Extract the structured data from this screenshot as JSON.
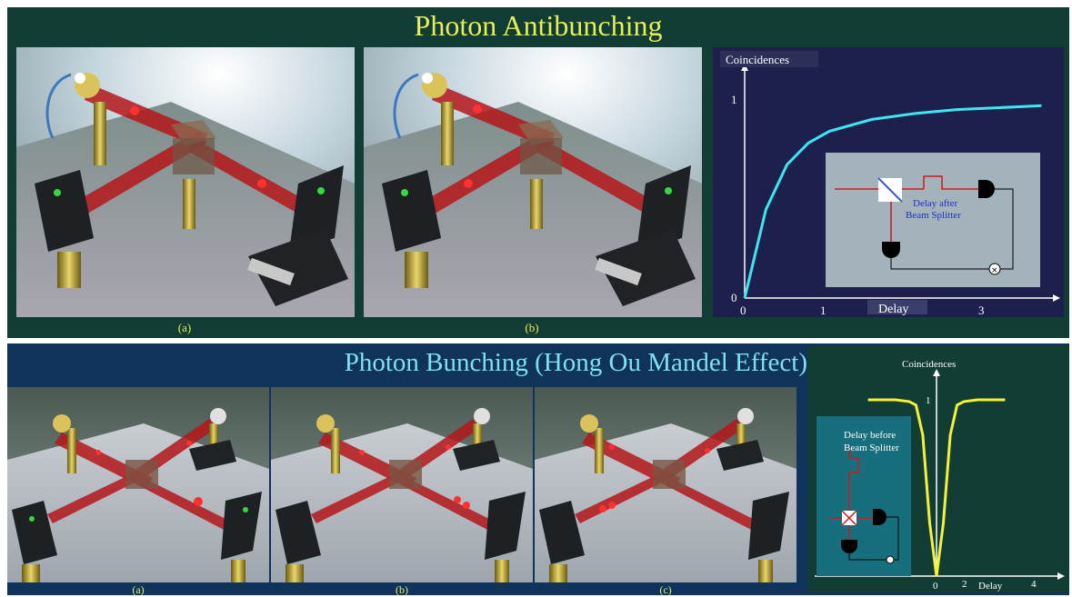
{
  "top": {
    "title": "Photon Antibunching",
    "caption_a": "(a)",
    "caption_b": "(b)",
    "graph": {
      "ylabel": "Coincidences",
      "xlabel": "Delay",
      "y_tick_1": "1",
      "y_tick_0": "0",
      "x_tick_0": "0",
      "x_tick_1": "1",
      "x_tick_3": "3",
      "inset_label": "Delay after\nBeam Splitter",
      "curve_color": "#3ee6f2"
    }
  },
  "bottom": {
    "title": "Photon Bunching (Hong Ou Mandel Effect)",
    "caption_a": "(a)",
    "caption_b": "(b)",
    "caption_c": "(c)",
    "graph": {
      "ylabel": "Coincidences",
      "xlabel": "Delay",
      "y_tick_1": "1",
      "x_tick_0": "0",
      "x_tick_2": "2",
      "x_tick_4": "4",
      "inset_label": "Delay before\nBeam Splitter",
      "curve_color": "#f2f23a"
    }
  },
  "colors": {
    "laser": "#c0181c",
    "detector_dot": "#35d83f"
  },
  "chart_data": [
    {
      "type": "line",
      "title": "",
      "ylabel": "Coincidences",
      "xlabel": "Delay",
      "x": [
        0,
        0.25,
        0.5,
        0.75,
        1,
        1.5,
        2,
        2.5,
        3,
        3.5
      ],
      "series": [
        {
          "values": [
            0,
            0.45,
            0.68,
            0.79,
            0.85,
            0.91,
            0.94,
            0.96,
            0.97,
            0.98
          ]
        }
      ],
      "ylim": [
        0,
        1.2
      ],
      "xlim": [
        0,
        3.7
      ]
    },
    {
      "type": "line",
      "title": "",
      "ylabel": "Coincidences",
      "xlabel": "Delay",
      "x": [
        -5,
        -3,
        -2,
        -1.5,
        -1,
        -0.5,
        0,
        0.5,
        1,
        1.5,
        2,
        3,
        5
      ],
      "series": [
        {
          "values": [
            1,
            1,
            0.99,
            0.97,
            0.8,
            0.3,
            0,
            0.3,
            0.8,
            0.97,
            0.99,
            1,
            1
          ]
        }
      ],
      "ylim": [
        0,
        1.05
      ],
      "xlim": [
        -5,
        5
      ]
    }
  ]
}
